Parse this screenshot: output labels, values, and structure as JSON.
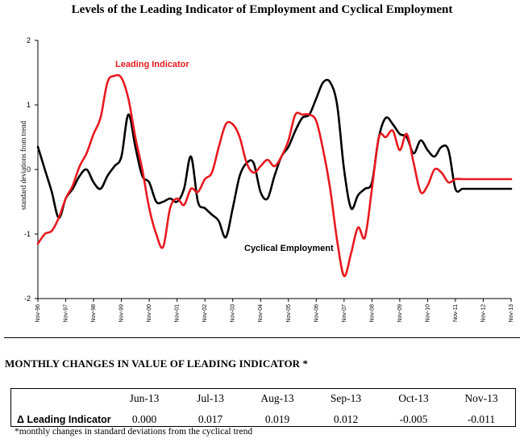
{
  "chart_data": {
    "type": "line",
    "title": "Levels of the Leading Indicator of Employment and Cyclical Employment",
    "xlabel": "",
    "ylabel": "standard deviations from trend",
    "ylim": [
      -2,
      2
    ],
    "yticks": [
      "2",
      "1",
      "0",
      "-1",
      "-2"
    ],
    "xticks": [
      "Nov-96",
      "Nov-97",
      "Nov-98",
      "Nov-99",
      "Nov-00",
      "Nov-01",
      "Nov-02",
      "Nov-03",
      "Nov-04",
      "Nov-05",
      "Nov-06",
      "Nov-07",
      "Nov-08",
      "Nov-09",
      "Nov-10",
      "Nov-11",
      "Nov-12",
      "Nov-13"
    ],
    "x": [
      0,
      0.25,
      0.5,
      0.75,
      1,
      1.25,
      1.5,
      1.75,
      2,
      2.25,
      2.5,
      2.75,
      3,
      3.25,
      3.5,
      3.75,
      4,
      4.25,
      4.5,
      4.75,
      5,
      5.25,
      5.5,
      5.75,
      6,
      6.25,
      6.5,
      6.75,
      7,
      7.25,
      7.5,
      7.75,
      8,
      8.25,
      8.5,
      8.75,
      9,
      9.25,
      9.5,
      9.75,
      10,
      10.25,
      10.5,
      10.75,
      11,
      11.25,
      11.5,
      11.75,
      12,
      12.25,
      12.5,
      12.75,
      13,
      13.25,
      13.5,
      13.75,
      14,
      14.25,
      14.5,
      14.75,
      15,
      15.25,
      15.5,
      15.75,
      16,
      16.25,
      16.5,
      16.75,
      17
    ],
    "series": [
      {
        "name": "Leading Indicator",
        "color": "#e8191e",
        "label": "Leading Indicator",
        "values": [
          -1.15,
          -1.0,
          -0.95,
          -0.75,
          -0.45,
          -0.25,
          0.05,
          0.25,
          0.55,
          0.8,
          1.35,
          1.45,
          1.42,
          1.1,
          0.5,
          0.0,
          -0.6,
          -1.0,
          -1.2,
          -0.6,
          -0.45,
          -0.55,
          -0.3,
          -0.35,
          -0.15,
          -0.05,
          0.35,
          0.7,
          0.7,
          0.5,
          0.1,
          -0.05,
          0.05,
          0.15,
          0.05,
          0.2,
          0.45,
          0.85,
          0.85,
          0.85,
          0.75,
          0.3,
          -0.3,
          -1.1,
          -1.65,
          -1.3,
          -0.9,
          -1.05,
          -0.3,
          0.5,
          0.5,
          0.6,
          0.3,
          0.55,
          0.1,
          -0.35,
          -0.25,
          0.0,
          -0.05,
          -0.2,
          -0.15,
          -0.15,
          -0.15,
          -0.15,
          -0.15,
          -0.15,
          -0.15,
          -0.15,
          -0.15
        ]
      },
      {
        "name": "Cyclical Employment",
        "color": "#000000",
        "label": "Cyclical Employment",
        "values": [
          0.35,
          0.0,
          -0.35,
          -0.75,
          -0.45,
          -0.3,
          -0.1,
          0.0,
          -0.2,
          -0.3,
          -0.1,
          0.05,
          0.2,
          0.85,
          0.35,
          -0.1,
          -0.2,
          -0.5,
          -0.5,
          -0.45,
          -0.5,
          -0.3,
          0.2,
          -0.5,
          -0.6,
          -0.7,
          -0.8,
          -1.05,
          -0.6,
          -0.1,
          0.1,
          0.1,
          -0.35,
          -0.45,
          -0.1,
          0.2,
          0.35,
          0.6,
          0.8,
          0.85,
          1.1,
          1.35,
          1.35,
          1.0,
          0.0,
          -0.6,
          -0.4,
          -0.3,
          -0.2,
          0.5,
          0.8,
          0.7,
          0.55,
          0.5,
          0.25,
          0.45,
          0.3,
          0.2,
          0.35,
          0.3,
          -0.3,
          -0.3,
          -0.3,
          -0.3,
          -0.3,
          -0.3,
          -0.3,
          -0.3,
          -0.3
        ]
      }
    ]
  },
  "table": {
    "heading": "MONTHLY CHANGES IN VALUE OF LEADING INDICATOR *",
    "columns": [
      "Jun-13",
      "Jul-13",
      "Aug-13",
      "Sep-13",
      "Oct-13",
      "Nov-13"
    ],
    "row_label": "Δ Leading Indicator",
    "values": [
      "0.000",
      "0.017",
      "0.019",
      "0.012",
      "-0.005",
      "-0.011"
    ],
    "footnote": "*monthly changes in standard deviations from the cyclical trend"
  }
}
